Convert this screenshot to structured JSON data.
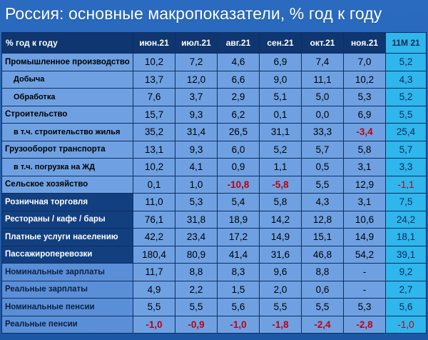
{
  "title": "Россия: основные макропоказатели, % год к году",
  "headers": {
    "label": "% год к году",
    "months": [
      "июн.21",
      "июл.21",
      "авг.21",
      "сен.21",
      "окт.21",
      "ноя.21"
    ],
    "total": "11М 21"
  },
  "rows": [
    {
      "label": "Промышленное производство",
      "values": [
        "10,2",
        "7,2",
        "4,6",
        "6,9",
        "7,4",
        "7,0"
      ],
      "total": "5,2"
    },
    {
      "label": "Добыча",
      "values": [
        "13,7",
        "12,0",
        "6,6",
        "9,0",
        "11,1",
        "10,2"
      ],
      "total": "4,3"
    },
    {
      "label": "Обработка",
      "values": [
        "7,6",
        "3,7",
        "2,9",
        "5,1",
        "5,0",
        "5,3"
      ],
      "total": "5,2"
    },
    {
      "label": "Строительство",
      "values": [
        "15,7",
        "9,3",
        "6,2",
        "0,1",
        "0,0",
        "6,9"
      ],
      "total": "5,5"
    },
    {
      "label": "в т.ч. строительство жилья",
      "values": [
        "35,2",
        "31,4",
        "26,5",
        "31,1",
        "33,3",
        "-3,4"
      ],
      "total": "25,4"
    },
    {
      "label": "Грузооборот транспорта",
      "values": [
        "13,1",
        "9,3",
        "6,0",
        "5,2",
        "5,7",
        "5,8"
      ],
      "total": "5,7"
    },
    {
      "label": "в т.ч. погрузка на ЖД",
      "values": [
        "10,2",
        "4,1",
        "0,9",
        "1,1",
        "0,5",
        "3,1"
      ],
      "total": "3,3"
    },
    {
      "label": "Сельское хозяйство",
      "values": [
        "0,1",
        "1,0",
        "-10,8",
        "-5,8",
        "5,5",
        "12,9"
      ],
      "total": "-1,1"
    },
    {
      "label": "Розничная торговля",
      "values": [
        "11,0",
        "5,3",
        "5,4",
        "5,8",
        "4,3",
        "3,1"
      ],
      "total": "7,5"
    },
    {
      "label": "Рестораны / кафе / бары",
      "values": [
        "76,1",
        "31,8",
        "18,9",
        "14,2",
        "12,8",
        "10,6"
      ],
      "total": "24,2"
    },
    {
      "label": "Платные услуги населению",
      "values": [
        "42,2",
        "23,4",
        "17,2",
        "14,9",
        "15,1",
        "14,9"
      ],
      "total": "18,1"
    },
    {
      "label": "Пассажироперевозки",
      "values": [
        "180,4",
        "80,9",
        "41,4",
        "31,6",
        "46,8",
        "54,2"
      ],
      "total": "39,1"
    },
    {
      "label": "Номинальные зарплаты",
      "values": [
        "11,7",
        "8,8",
        "8,3",
        "9,6",
        "8,8",
        "-"
      ],
      "total": "9,2"
    },
    {
      "label": "Реальные зарплаты",
      "values": [
        "4,9",
        "2,2",
        "1,5",
        "2,0",
        "0,6",
        "-"
      ],
      "total": "2,7"
    },
    {
      "label": "Номинальные пенсии",
      "values": [
        "5,5",
        "5,5",
        "5,6",
        "5,5",
        "5,5",
        "5,3"
      ],
      "total": "5,6"
    },
    {
      "label": "Реальные пенсии",
      "values": [
        "-1,0",
        "-0,9",
        "-1,0",
        "-1,8",
        "-2,4",
        "-2,8"
      ],
      "total": "-1,0"
    }
  ],
  "colors": {
    "header_bg": "#0f3670",
    "total_col_bg": "#2fb6ec",
    "cell_bg": "#6fa1e2",
    "negative": "#c00010"
  }
}
